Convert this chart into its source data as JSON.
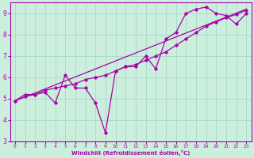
{
  "xlabel": "Windchill (Refroidissement éolien,°C)",
  "bg_color": "#cceedd",
  "line_color": "#aa00aa",
  "grid_color": "#aaddcc",
  "xlim": [
    -0.5,
    23.5
  ],
  "ylim": [
    3.0,
    9.5
  ],
  "xticks": [
    0,
    1,
    2,
    3,
    4,
    5,
    6,
    7,
    8,
    9,
    10,
    11,
    12,
    13,
    14,
    15,
    16,
    17,
    18,
    19,
    20,
    21,
    22,
    23
  ],
  "yticks": [
    3,
    4,
    5,
    6,
    7,
    8,
    9
  ],
  "line1_x": [
    0,
    23
  ],
  "line1_y": [
    4.9,
    9.2
  ],
  "line2_x": [
    0,
    1,
    2,
    3,
    4,
    5,
    6,
    7,
    8,
    9,
    10,
    11,
    12,
    13,
    14,
    15,
    16,
    17,
    18,
    19,
    20,
    21,
    22,
    23
  ],
  "line2_y": [
    4.9,
    5.2,
    5.2,
    5.3,
    4.8,
    6.1,
    5.5,
    5.5,
    4.8,
    3.4,
    6.3,
    6.5,
    6.5,
    7.0,
    6.4,
    7.8,
    8.1,
    9.0,
    9.2,
    9.3,
    9.0,
    8.9,
    8.5,
    9.0
  ],
  "line3_x": [
    0,
    1,
    2,
    3,
    4,
    5,
    6,
    7,
    8,
    9,
    10,
    11,
    12,
    13,
    14,
    15,
    16,
    17,
    18,
    19,
    20,
    21,
    22,
    23
  ],
  "line3_y": [
    4.9,
    5.1,
    5.2,
    5.4,
    5.5,
    5.6,
    5.7,
    5.9,
    6.0,
    6.1,
    6.3,
    6.5,
    6.6,
    6.8,
    7.0,
    7.2,
    7.5,
    7.8,
    8.1,
    8.4,
    8.6,
    8.8,
    8.95,
    9.15
  ]
}
